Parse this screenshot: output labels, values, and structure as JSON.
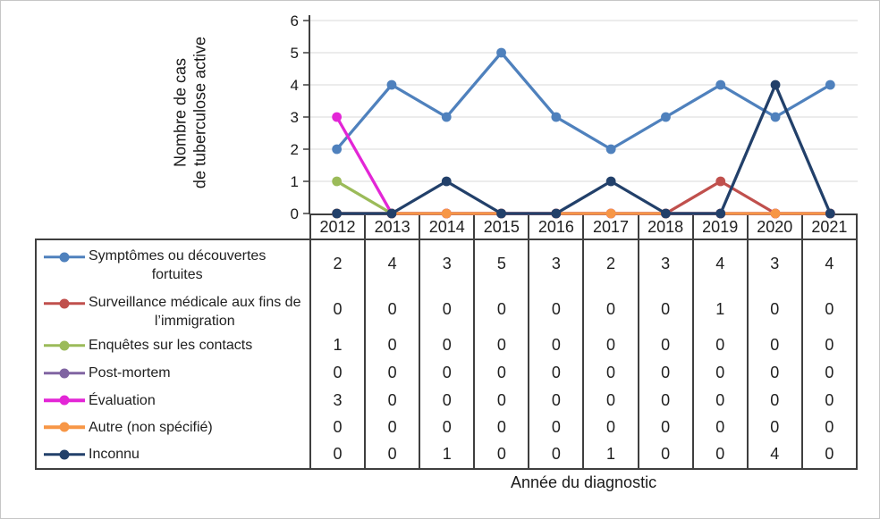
{
  "chart_data": {
    "type": "line",
    "title": "",
    "xlabel": "Année du diagnostic",
    "ylabel": "Nombre de cas\nde tuberculose active",
    "categories": [
      "2012",
      "2013",
      "2014",
      "2015",
      "2016",
      "2017",
      "2018",
      "2019",
      "2020",
      "2021"
    ],
    "ylim": [
      0,
      6
    ],
    "yticks": [
      0,
      1,
      2,
      3,
      4,
      5,
      6
    ],
    "grid": "horizontal",
    "legend_position": "table-left",
    "series": [
      {
        "name": "Symptômes ou découvertes fortuites",
        "name_lines": [
          "Symptômes ou découvertes",
          "fortuites"
        ],
        "color": "#4f81bd",
        "values": [
          2,
          4,
          3,
          5,
          3,
          2,
          3,
          4,
          3,
          4
        ]
      },
      {
        "name": "Surveillance médicale aux fins de l’immigration",
        "name_lines": [
          "Surveillance médicale aux fins de",
          "l’immigration"
        ],
        "color": "#c0504d",
        "values": [
          0,
          0,
          0,
          0,
          0,
          0,
          0,
          1,
          0,
          0
        ]
      },
      {
        "name": "Enquêtes sur les contacts",
        "name_lines": [
          "Enquêtes sur les contacts"
        ],
        "color": "#9bbb59",
        "values": [
          1,
          0,
          0,
          0,
          0,
          0,
          0,
          0,
          0,
          0
        ]
      },
      {
        "name": "Post-mortem",
        "name_lines": [
          "Post-mortem"
        ],
        "color": "#8064a2",
        "values": [
          0,
          0,
          0,
          0,
          0,
          0,
          0,
          0,
          0,
          0
        ]
      },
      {
        "name": "Évaluation",
        "name_lines": [
          "Évaluation"
        ],
        "color": "#e326d6",
        "values": [
          3,
          0,
          0,
          0,
          0,
          0,
          0,
          0,
          0,
          0
        ]
      },
      {
        "name": "Autre (non spécifié)",
        "name_lines": [
          "Autre (non spécifié)"
        ],
        "color": "#f79646",
        "values": [
          0,
          0,
          0,
          0,
          0,
          0,
          0,
          0,
          0,
          0
        ]
      },
      {
        "name": "Inconnu",
        "name_lines": [
          "Inconnu"
        ],
        "color": "#22406a",
        "values": [
          0,
          0,
          1,
          0,
          0,
          1,
          0,
          0,
          4,
          0
        ]
      }
    ]
  },
  "style": {
    "axis_color": "#3f3f3f",
    "grid_color": "#d9d9d9",
    "table_border_color": "#3f3f3f",
    "text_color": "#1a1a1a",
    "background": "#ffffff"
  }
}
